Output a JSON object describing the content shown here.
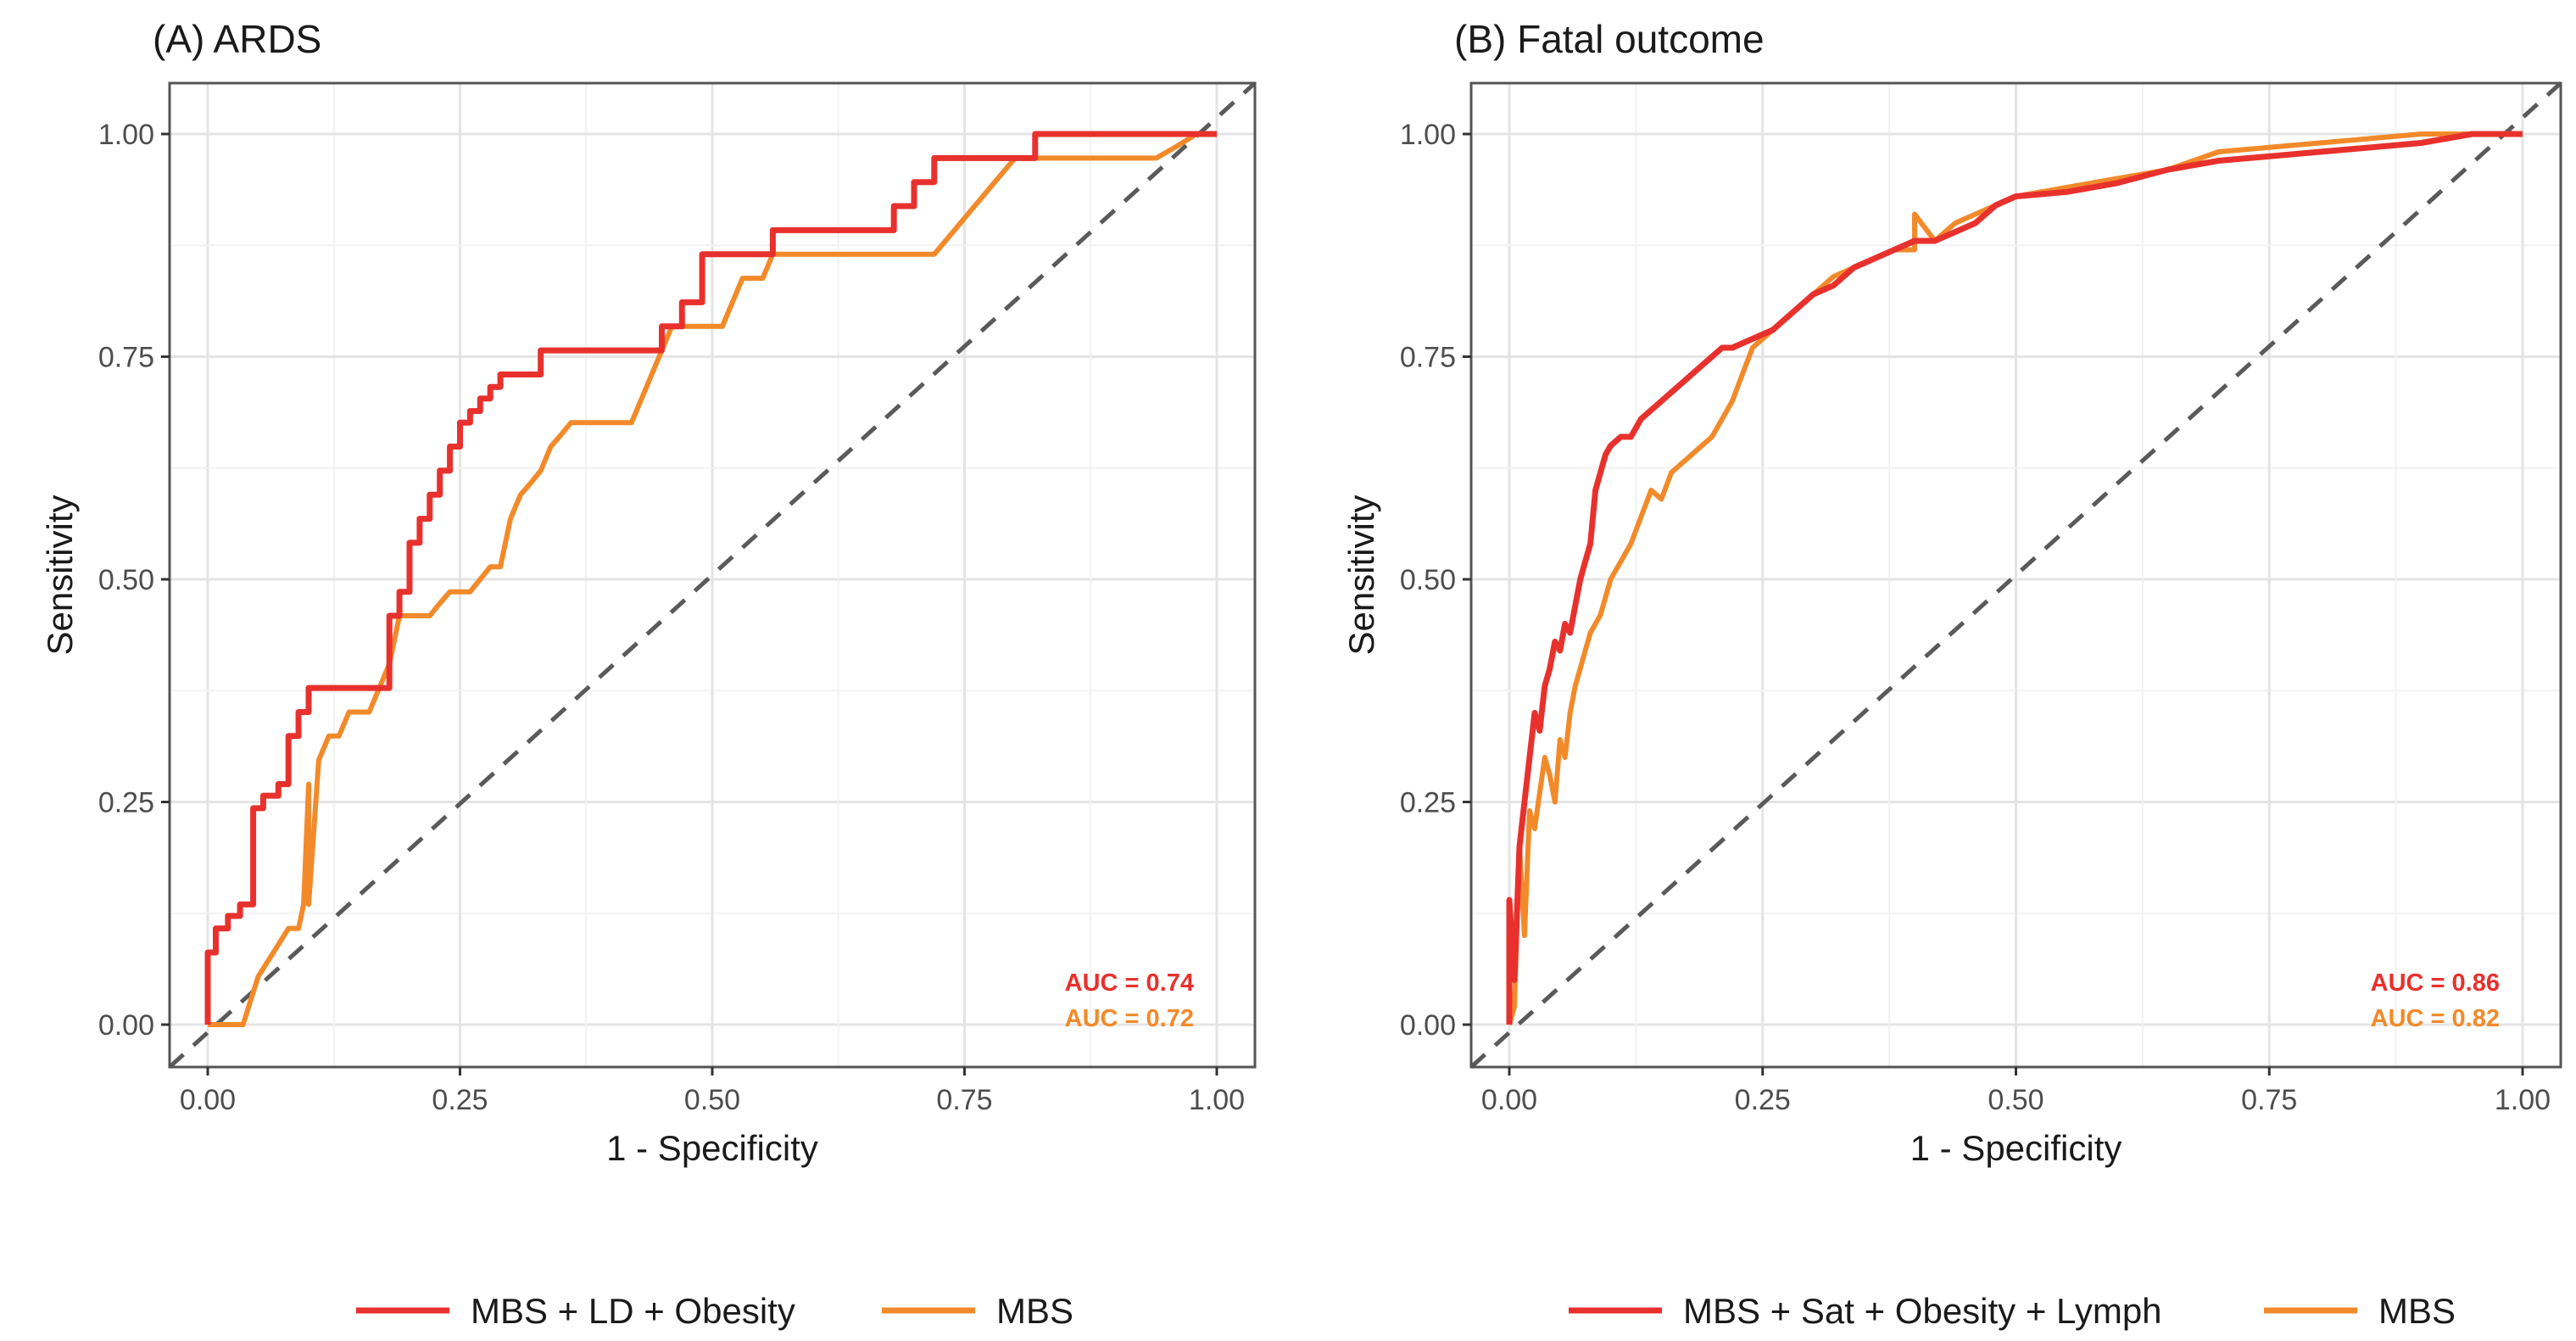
{
  "colors": {
    "combined_model": "#e8312d",
    "mbs_model": "#f28a2a",
    "reference_line": "#5a5a5a",
    "grid_major": "#e4e4e4",
    "grid_minor": "#f2f2f2",
    "frame": "#555555"
  },
  "chart_data": [
    {
      "type": "line",
      "title": "(A) ARDS",
      "xlabel": "1 - Specificity",
      "ylabel": "Sensitivity",
      "xlim": [
        0,
        1
      ],
      "ylim": [
        0,
        1
      ],
      "xticks": [
        "0.00",
        "0.25",
        "0.50",
        "0.75",
        "1.00"
      ],
      "yticks": [
        "0.00",
        "0.25",
        "0.50",
        "0.75",
        "1.00"
      ],
      "grid": true,
      "reference_line": "diagonal dashed",
      "series": [
        {
          "name": "MBS + LD + Obesity",
          "auc_label": "AUC = 0.74",
          "x": [
            0,
            0,
            0.008,
            0.008,
            0.02,
            0.02,
            0.032,
            0.032,
            0.045,
            0.045,
            0.055,
            0.055,
            0.07,
            0.07,
            0.08,
            0.08,
            0.09,
            0.09,
            0.1,
            0.1,
            0.11,
            0.12,
            0.13,
            0.14,
            0.155,
            0.17,
            0.18,
            0.18,
            0.19,
            0.19,
            0.2,
            0.2,
            0.21,
            0.21,
            0.22,
            0.22,
            0.23,
            0.23,
            0.24,
            0.24,
            0.25,
            0.25,
            0.26,
            0.26,
            0.27,
            0.27,
            0.28,
            0.28,
            0.29,
            0.29,
            0.3,
            0.3,
            0.33,
            0.33,
            0.35,
            0.35,
            0.37,
            0.39,
            0.41,
            0.43,
            0.45,
            0.45,
            0.47,
            0.47,
            0.49,
            0.49,
            0.5,
            0.5,
            0.52,
            0.54,
            0.56,
            0.56,
            0.58,
            0.6,
            0.62,
            0.64,
            0.66,
            0.68,
            0.68,
            0.7,
            0.7,
            0.72,
            0.72,
            0.74,
            0.76,
            0.76,
            0.78,
            0.78,
            0.8,
            0.8,
            0.82,
            0.82,
            0.84,
            0.84,
            0.86,
            0.88,
            0.9,
            0.92,
            0.94,
            0.96,
            0.98,
            1.0
          ],
          "y": [
            0,
            0.081,
            0.081,
            0.108,
            0.108,
            0.122,
            0.122,
            0.135,
            0.135,
            0.243,
            0.243,
            0.257,
            0.257,
            0.27,
            0.27,
            0.324,
            0.324,
            0.351,
            0.351,
            0.378,
            0.378,
            0.378,
            0.378,
            0.378,
            0.378,
            0.378,
            0.378,
            0.459,
            0.459,
            0.486,
            0.486,
            0.541,
            0.541,
            0.568,
            0.568,
            0.595,
            0.595,
            0.622,
            0.622,
            0.649,
            0.649,
            0.676,
            0.676,
            0.689,
            0.689,
            0.703,
            0.703,
            0.716,
            0.716,
            0.73,
            0.73,
            0.73,
            0.73,
            0.757,
            0.757,
            0.757,
            0.757,
            0.757,
            0.757,
            0.757,
            0.757,
            0.784,
            0.784,
            0.811,
            0.811,
            0.865,
            0.865,
            0.865,
            0.865,
            0.865,
            0.865,
            0.892,
            0.892,
            0.892,
            0.892,
            0.892,
            0.892,
            0.892,
            0.919,
            0.919,
            0.946,
            0.946,
            0.973,
            0.973,
            0.973,
            0.973,
            0.973,
            0.973,
            0.973,
            0.973,
            0.973,
            1.0,
            1.0,
            1.0,
            1.0,
            1.0,
            1.0,
            1.0,
            1.0,
            1.0,
            1.0,
            1.0
          ]
        },
        {
          "name": "MBS",
          "auc_label": "AUC = 0.72",
          "x": [
            0,
            0.01,
            0.02,
            0.035,
            0.05,
            0.065,
            0.08,
            0.09,
            0.095,
            0.1,
            0.1,
            0.11,
            0.12,
            0.13,
            0.14,
            0.15,
            0.16,
            0.17,
            0.18,
            0.19,
            0.2,
            0.21,
            0.22,
            0.23,
            0.24,
            0.25,
            0.26,
            0.27,
            0.28,
            0.29,
            0.3,
            0.31,
            0.32,
            0.33,
            0.34,
            0.35,
            0.36,
            0.38,
            0.4,
            0.42,
            0.43,
            0.44,
            0.45,
            0.46,
            0.48,
            0.5,
            0.51,
            0.52,
            0.53,
            0.54,
            0.55,
            0.56,
            0.58,
            0.6,
            0.62,
            0.64,
            0.66,
            0.68,
            0.7,
            0.72,
            0.74,
            0.76,
            0.78,
            0.8,
            0.82,
            0.84,
            0.86,
            0.88,
            0.9,
            0.92,
            0.94,
            0.96,
            0.98,
            1.0
          ],
          "y": [
            0,
            0,
            0,
            0,
            0.054,
            0.081,
            0.108,
            0.108,
            0.135,
            0.27,
            0.135,
            0.297,
            0.324,
            0.324,
            0.351,
            0.351,
            0.351,
            0.378,
            0.405,
            0.459,
            0.459,
            0.459,
            0.459,
            0.473,
            0.486,
            0.486,
            0.486,
            0.5,
            0.514,
            0.514,
            0.568,
            0.595,
            0.608,
            0.622,
            0.649,
            0.662,
            0.676,
            0.676,
            0.676,
            0.676,
            0.703,
            0.73,
            0.757,
            0.784,
            0.784,
            0.784,
            0.784,
            0.811,
            0.838,
            0.838,
            0.838,
            0.865,
            0.865,
            0.865,
            0.865,
            0.865,
            0.865,
            0.865,
            0.865,
            0.865,
            0.892,
            0.919,
            0.946,
            0.973,
            0.973,
            0.973,
            0.973,
            0.973,
            0.973,
            0.973,
            0.973,
            0.986,
            1.0,
            1.0
          ]
        }
      ]
    },
    {
      "type": "line",
      "title": "(B) Fatal outcome",
      "xlabel": "1 - Specificity",
      "ylabel": "Sensitivity",
      "xlim": [
        0,
        1
      ],
      "ylim": [
        0,
        1
      ],
      "xticks": [
        "0.00",
        "0.25",
        "0.50",
        "0.75",
        "1.00"
      ],
      "yticks": [
        "0.00",
        "0.25",
        "0.50",
        "0.75",
        "1.00"
      ],
      "grid": true,
      "reference_line": "diagonal dashed",
      "series": [
        {
          "name": "MBS + Sat + Obesity + Lymph",
          "auc_label": "AUC = 0.86",
          "x": [
            0,
            0,
            0.005,
            0.01,
            0.015,
            0.02,
            0.025,
            0.03,
            0.035,
            0.04,
            0.045,
            0.05,
            0.055,
            0.06,
            0.065,
            0.07,
            0.075,
            0.08,
            0.085,
            0.09,
            0.095,
            0.1,
            0.11,
            0.12,
            0.13,
            0.14,
            0.15,
            0.16,
            0.17,
            0.18,
            0.19,
            0.2,
            0.21,
            0.22,
            0.24,
            0.26,
            0.28,
            0.3,
            0.32,
            0.34,
            0.36,
            0.38,
            0.4,
            0.42,
            0.44,
            0.46,
            0.48,
            0.5,
            0.55,
            0.6,
            0.65,
            0.7,
            0.75,
            0.8,
            0.85,
            0.9,
            0.95,
            1.0
          ],
          "y": [
            0,
            0.14,
            0.05,
            0.2,
            0.25,
            0.3,
            0.35,
            0.33,
            0.38,
            0.4,
            0.43,
            0.42,
            0.45,
            0.44,
            0.47,
            0.5,
            0.52,
            0.54,
            0.6,
            0.62,
            0.64,
            0.65,
            0.66,
            0.66,
            0.68,
            0.69,
            0.7,
            0.71,
            0.72,
            0.73,
            0.74,
            0.75,
            0.76,
            0.76,
            0.77,
            0.78,
            0.8,
            0.82,
            0.83,
            0.85,
            0.86,
            0.87,
            0.88,
            0.88,
            0.89,
            0.9,
            0.92,
            0.93,
            0.935,
            0.945,
            0.96,
            0.97,
            0.975,
            0.98,
            0.985,
            0.99,
            1.0,
            1.0
          ]
        },
        {
          "name": "MBS",
          "auc_label": "AUC = 0.82",
          "x": [
            0,
            0.005,
            0.01,
            0.015,
            0.02,
            0.025,
            0.03,
            0.035,
            0.04,
            0.045,
            0.05,
            0.055,
            0.06,
            0.065,
            0.07,
            0.075,
            0.08,
            0.09,
            0.1,
            0.11,
            0.12,
            0.13,
            0.14,
            0.15,
            0.16,
            0.17,
            0.18,
            0.19,
            0.2,
            0.21,
            0.22,
            0.23,
            0.24,
            0.26,
            0.28,
            0.3,
            0.32,
            0.34,
            0.36,
            0.38,
            0.4,
            0.4,
            0.42,
            0.44,
            0.46,
            0.48,
            0.5,
            0.55,
            0.6,
            0.65,
            0.7,
            0.75,
            0.8,
            0.85,
            0.9,
            0.95,
            1.0
          ],
          "y": [
            0,
            0.02,
            0.2,
            0.1,
            0.24,
            0.22,
            0.26,
            0.3,
            0.28,
            0.25,
            0.32,
            0.3,
            0.35,
            0.38,
            0.4,
            0.42,
            0.44,
            0.46,
            0.5,
            0.52,
            0.54,
            0.57,
            0.6,
            0.59,
            0.62,
            0.63,
            0.64,
            0.65,
            0.66,
            0.68,
            0.7,
            0.73,
            0.76,
            0.78,
            0.8,
            0.82,
            0.84,
            0.85,
            0.86,
            0.87,
            0.87,
            0.91,
            0.88,
            0.9,
            0.91,
            0.92,
            0.93,
            0.94,
            0.95,
            0.96,
            0.98,
            0.985,
            0.99,
            0.995,
            1.0,
            1.0,
            1.0
          ]
        }
      ]
    }
  ]
}
